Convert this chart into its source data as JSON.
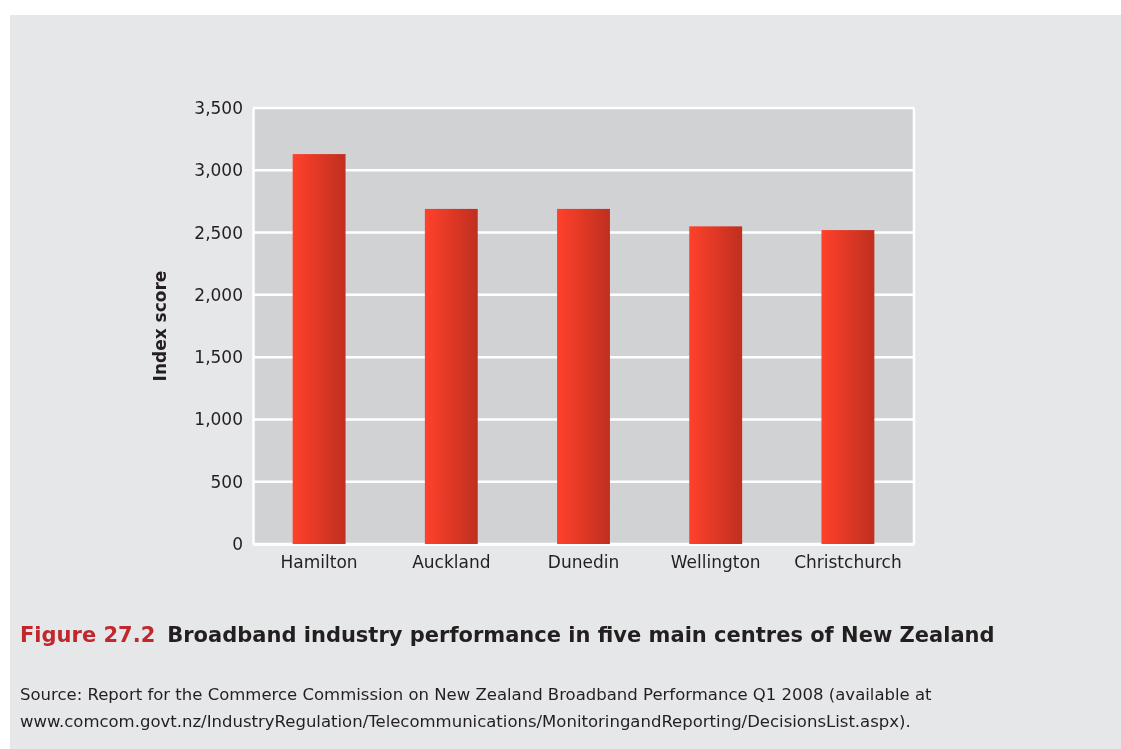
{
  "chart_data": {
    "type": "bar",
    "title": "Broadband industry performance in five main centres of New Zealand",
    "ylabel": "Index score",
    "categories": [
      "Hamilton",
      "Auckland",
      "Dunedin",
      "Wellington",
      "Christchurch"
    ],
    "values": [
      3130,
      2690,
      2690,
      2550,
      2520
    ],
    "color": "#bf2f1f",
    "ylim": [
      0,
      3500
    ],
    "yticks": [
      {
        "value": 0,
        "label": "0"
      },
      {
        "value": 500,
        "label": "500"
      },
      {
        "value": 1000,
        "label": "1,000"
      },
      {
        "value": 1500,
        "label": "1,500"
      },
      {
        "value": 2000,
        "label": "2,000"
      },
      {
        "value": 2500,
        "label": "2,500"
      },
      {
        "value": 3000,
        "label": "3,000"
      },
      {
        "value": 3500,
        "label": "3,500"
      }
    ],
    "grid": "y",
    "annotations": [
      "Figure 27.2",
      "Source: Report for the Commerce Commission on New Zealand Broadband Performance Q1 2008 (available at www.comcom.govt.nz/IndustryRegulation/Telecommunications/MonitoringandReporting/DecisionsList.aspx)."
    ]
  }
}
